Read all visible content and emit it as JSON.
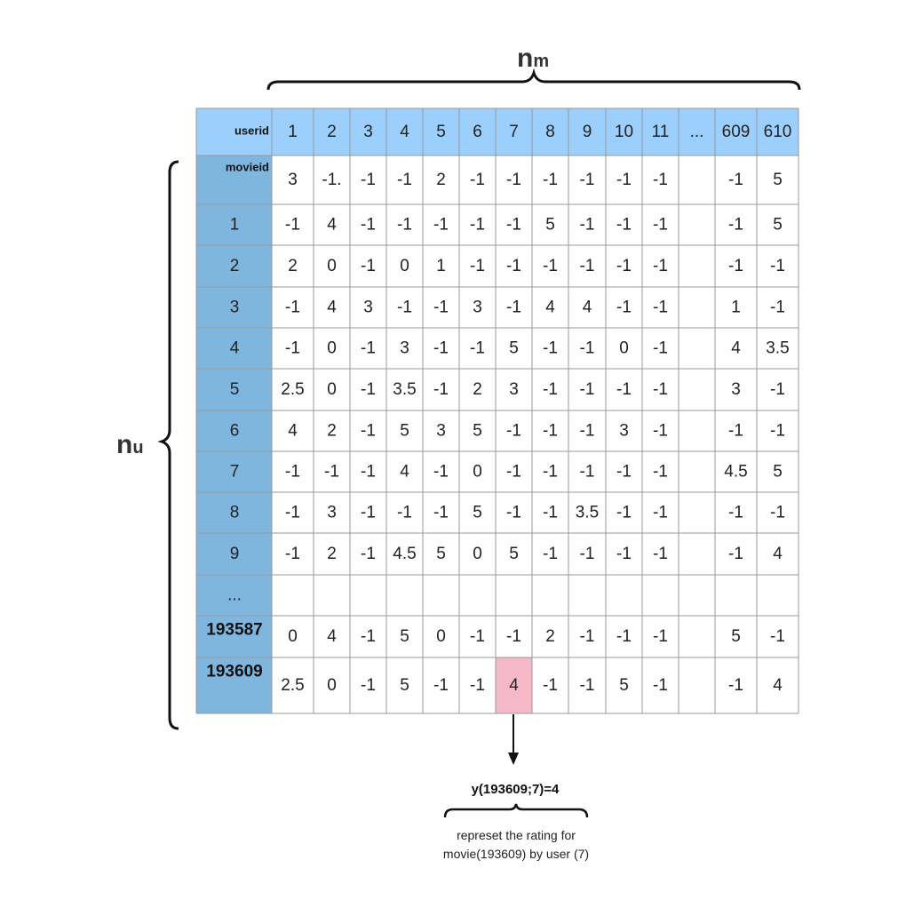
{
  "labels": {
    "top_brace_main": "n",
    "top_brace_sub": "m",
    "side_brace_main": "n",
    "side_brace_sub": "u"
  },
  "table": {
    "corner_top": "userid",
    "corner_bottom": "movieid",
    "columns": [
      "1",
      "2",
      "3",
      "4",
      "5",
      "6",
      "7",
      "8",
      "9",
      "10",
      "11",
      "...",
      "609",
      "610"
    ],
    "rows": [
      {
        "label": "",
        "bold": false,
        "values": [
          "3",
          "-1.",
          "-1",
          "-1",
          "2",
          "-1",
          "-1",
          "-1",
          "-1",
          "-1",
          "-1",
          "",
          "-1",
          "5"
        ]
      },
      {
        "label": "1",
        "bold": false,
        "values": [
          "-1",
          "4",
          "-1",
          "-1",
          "-1",
          "-1",
          "-1",
          "5",
          "-1",
          "-1",
          "-1",
          "",
          "-1",
          "5"
        ]
      },
      {
        "label": "2",
        "bold": false,
        "values": [
          "2",
          "0",
          "-1",
          "0",
          "1",
          "-1",
          "-1",
          "-1",
          "-1",
          "-1",
          "-1",
          "",
          "-1",
          "-1"
        ]
      },
      {
        "label": "3",
        "bold": false,
        "values": [
          "-1",
          "4",
          "3",
          "-1",
          "-1",
          "3",
          "-1",
          "4",
          "4",
          "-1",
          "-1",
          "",
          "1",
          "-1"
        ]
      },
      {
        "label": "4",
        "bold": false,
        "values": [
          "-1",
          "0",
          "-1",
          "3",
          "-1",
          "-1",
          "5",
          "-1",
          "-1",
          "0",
          "-1",
          "",
          "4",
          "3.5"
        ]
      },
      {
        "label": "5",
        "bold": false,
        "values": [
          "2.5",
          "0",
          "-1",
          "3.5",
          "-1",
          "2",
          "3",
          "-1",
          "-1",
          "-1",
          "-1",
          "",
          "3",
          "-1"
        ]
      },
      {
        "label": "6",
        "bold": false,
        "values": [
          "4",
          "2",
          "-1",
          "5",
          "3",
          "5",
          "-1",
          "-1",
          "-1",
          "3",
          "-1",
          "",
          "-1",
          "-1"
        ]
      },
      {
        "label": "7",
        "bold": false,
        "values": [
          "-1",
          "-1",
          "-1",
          "4",
          "-1",
          "0",
          "-1",
          "-1",
          "-1",
          "-1",
          "-1",
          "",
          "4.5",
          "5"
        ]
      },
      {
        "label": "8",
        "bold": false,
        "values": [
          "-1",
          "3",
          "-1",
          "-1",
          "-1",
          "5",
          "-1",
          "-1",
          "3.5",
          "-1",
          "-1",
          "",
          "-1",
          "-1"
        ]
      },
      {
        "label": "9",
        "bold": false,
        "values": [
          "-1",
          "2",
          "-1",
          "4.5",
          "5",
          "0",
          "5",
          "-1",
          "-1",
          "-1",
          "-1",
          "",
          "-1",
          "4"
        ]
      },
      {
        "label": "...",
        "bold": false,
        "values": [
          "",
          "",
          "",
          "",
          "",
          "",
          "",
          "",
          "",
          "",
          "",
          "",
          "",
          ""
        ]
      },
      {
        "label": "193587",
        "bold": true,
        "values": [
          "0",
          "4",
          "-1",
          "5",
          "0",
          "-1",
          "-1",
          "2",
          "-1",
          "-1",
          "-1",
          "",
          "5",
          "-1"
        ]
      },
      {
        "label": "193609",
        "bold": true,
        "values": [
          "2.5",
          "0",
          "-1",
          "5",
          "-1",
          "-1",
          "4",
          "-1",
          "-1",
          "5",
          "-1",
          "",
          "-1",
          "4"
        ]
      }
    ],
    "highlight": {
      "row": 12,
      "col": 6
    }
  },
  "annotation": {
    "formula": "y(193609;7)=4",
    "caption_line1": "represet the rating for",
    "caption_line2": "movie(193609) by user (7)"
  },
  "colors": {
    "header_bg": "#9ccffb",
    "rowhead_bg": "#7fb6e0",
    "highlight_bg": "#f4b8c8",
    "grid": "#9a9a9a"
  }
}
